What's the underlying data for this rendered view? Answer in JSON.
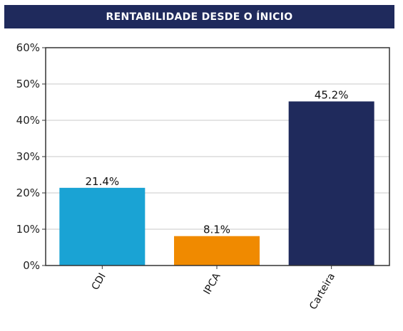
{
  "chart_data": {
    "type": "bar",
    "title": "RENTABILIDADE DESDE O ÍNICIO",
    "categories": [
      "CDI",
      "IPCA",
      "Carteira"
    ],
    "values": [
      21.4,
      8.1,
      45.2
    ],
    "data_labels": [
      "21.4%",
      "8.1%",
      "45.2%"
    ],
    "bar_colors": [
      "#1aa3d4",
      "#f08a00",
      "#1f2a5c"
    ],
    "ylim": [
      0,
      60
    ],
    "yticks": [
      0,
      10,
      20,
      30,
      40,
      50,
      60
    ],
    "ytick_labels": [
      "0%",
      "10%",
      "20%",
      "30%",
      "40%",
      "50%",
      "60%"
    ],
    "grid": true,
    "legend": "none",
    "xlabel": "",
    "ylabel": ""
  }
}
